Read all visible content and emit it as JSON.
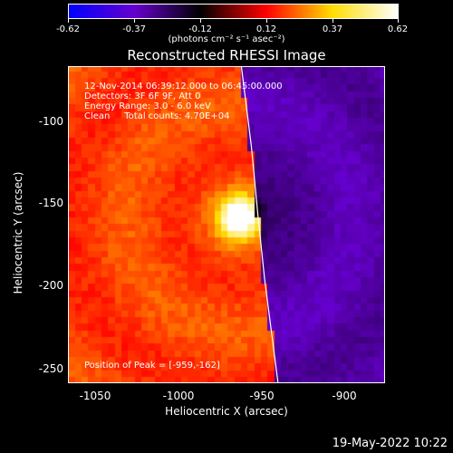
{
  "colorbar": {
    "ticks": [
      "-0.62",
      "-0.37",
      "-0.12",
      "0.12",
      "0.37",
      "0.62"
    ],
    "units": "(photons cm⁻² s⁻¹ asec⁻²)"
  },
  "info": {
    "time": "12-Nov-2014 06:39:12.000 to 06:45:00.000",
    "detectors": "Detectors: 3F 6F 9F, Att 0",
    "energy": "Energy Range: 3.0 - 6.0 keV",
    "method": "Clean     Total counts: 4.70E+04",
    "peak": "Position of Peak = [-959,-162]"
  },
  "footer": {
    "timestamp": "19-May-2022 10:22"
  },
  "chart_data": {
    "type": "heatmap",
    "title": "Reconstructed RHESSI Image",
    "xlabel": "Heliocentric X (arcsec)",
    "ylabel": "Heliocentric Y (arcsec)",
    "xlim": [
      -1062,
      -872
    ],
    "ylim": [
      -262,
      -72
    ],
    "xticks": [
      -1050,
      -1000,
      -950,
      -900
    ],
    "yticks": [
      -100,
      -150,
      -200,
      -250
    ],
    "value_range": [
      -0.62,
      0.62
    ],
    "peak": {
      "x": -959,
      "y": -162
    },
    "colormap": [
      "#0000ff",
      "#6600cc",
      "#000000",
      "#ff0000",
      "#ffdd00",
      "#ffffff"
    ],
    "limb_points": [
      [
        -958,
        -72
      ],
      [
        -952,
        -120
      ],
      [
        -948,
        -162
      ],
      [
        -944,
        -200
      ],
      [
        -936,
        -262
      ]
    ]
  }
}
